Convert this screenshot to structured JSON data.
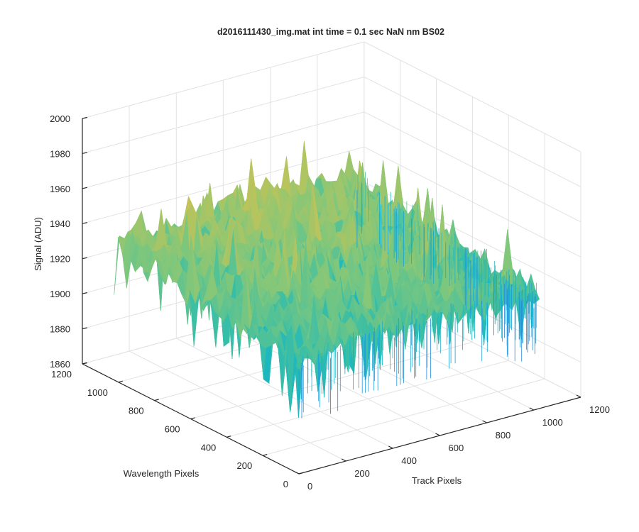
{
  "chart_data": {
    "type": "surface",
    "title": "d2016111430_img.mat int time = 0.1 sec  NaN nm BS02",
    "xlabel": "Track Pixels",
    "ylabel": "Wavelength Pixels",
    "zlabel": "Signal (ADU)",
    "xlim": [
      0,
      1200
    ],
    "ylim": [
      0,
      1200
    ],
    "zlim": [
      1860,
      2000
    ],
    "x_ticks": [
      "0",
      "200",
      "400",
      "600",
      "800",
      "1000",
      "1200"
    ],
    "y_ticks": [
      "0",
      "200",
      "400",
      "600",
      "800",
      "1000",
      "1200"
    ],
    "z_ticks": [
      "1860",
      "1880",
      "1900",
      "1920",
      "1940",
      "1960",
      "1980",
      "2000"
    ],
    "surface": {
      "x_range": [
        0,
        1024
      ],
      "y_range": [
        0,
        1024
      ],
      "z_range_observed": [
        1855,
        1990
      ],
      "mean_level": 1928,
      "colormap": "parula",
      "colormap_stops": [
        "#2a6fd6",
        "#1c9adf",
        "#13b5c9",
        "#3cbfa4",
        "#7fc77c",
        "#b9c45c",
        "#e0bd4f"
      ]
    },
    "grid": true,
    "legend": "none"
  }
}
